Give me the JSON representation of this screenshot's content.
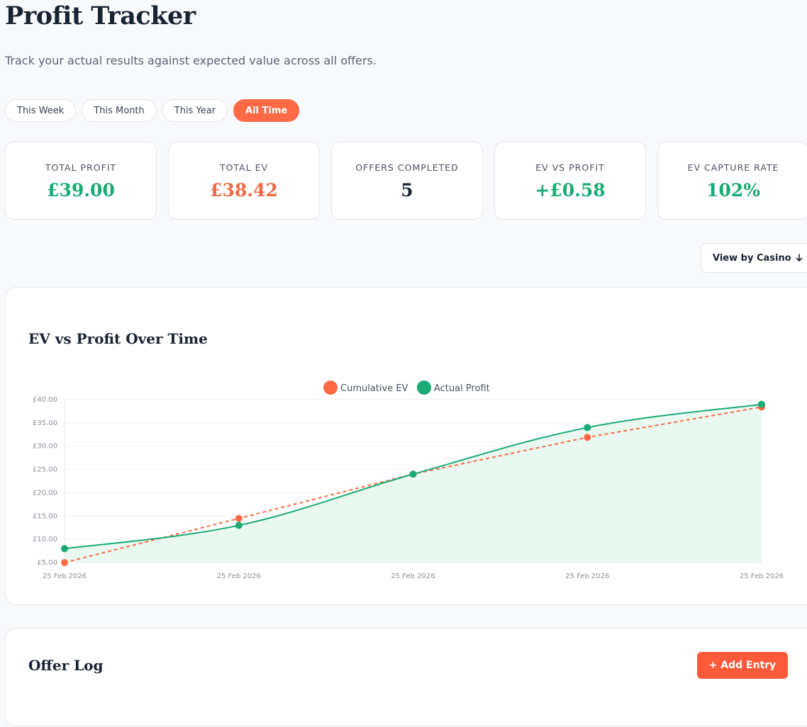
{
  "header": {
    "title": "Profit Tracker",
    "subtitle": "Track your actual results against expected value across all offers."
  },
  "filters": [
    {
      "label": "This Week",
      "active": false
    },
    {
      "label": "This Month",
      "active": false
    },
    {
      "label": "This Year",
      "active": false
    },
    {
      "label": "All Time",
      "active": true
    }
  ],
  "stats": [
    {
      "label": "TOTAL PROFIT",
      "value": "£39.00",
      "tone": "green"
    },
    {
      "label": "TOTAL EV",
      "value": "£38.42",
      "tone": "orange"
    },
    {
      "label": "OFFERS COMPLETED",
      "value": "5",
      "tone": "dark"
    },
    {
      "label": "EV VS PROFIT",
      "value": "+£0.58",
      "tone": "green"
    },
    {
      "label": "EV CAPTURE RATE",
      "value": "102%",
      "tone": "green"
    }
  ],
  "view_by": {
    "label": "View by Casino",
    "icon": "arrow-down-icon"
  },
  "chart_panel": {
    "title": "EV vs Profit Over Time"
  },
  "chart_data": {
    "type": "line",
    "x": [
      "25 Feb 2026",
      "25 Feb 2026",
      "25 Feb 2026",
      "25 Feb 2026",
      "25 Feb 2026"
    ],
    "series": [
      {
        "name": "Cumulative EV",
        "values": [
          5.0,
          14.5,
          24.0,
          31.9,
          38.42
        ],
        "color": "#ff6a45",
        "dashed": true,
        "fill": false
      },
      {
        "name": "Actual Profit",
        "values": [
          8.0,
          13.0,
          24.0,
          34.0,
          39.0
        ],
        "color": "#1aab74",
        "dashed": false,
        "fill": true
      }
    ],
    "yticks": [
      "£5.00",
      "£10.00",
      "£15.00",
      "£20.00",
      "£25.00",
      "£30.00",
      "£35.00",
      "£40.00"
    ],
    "ylim": [
      5,
      40
    ],
    "legend": "top-center",
    "grid": true
  },
  "offer_log": {
    "title": "Offer Log",
    "add_label": "+ Add Entry"
  }
}
